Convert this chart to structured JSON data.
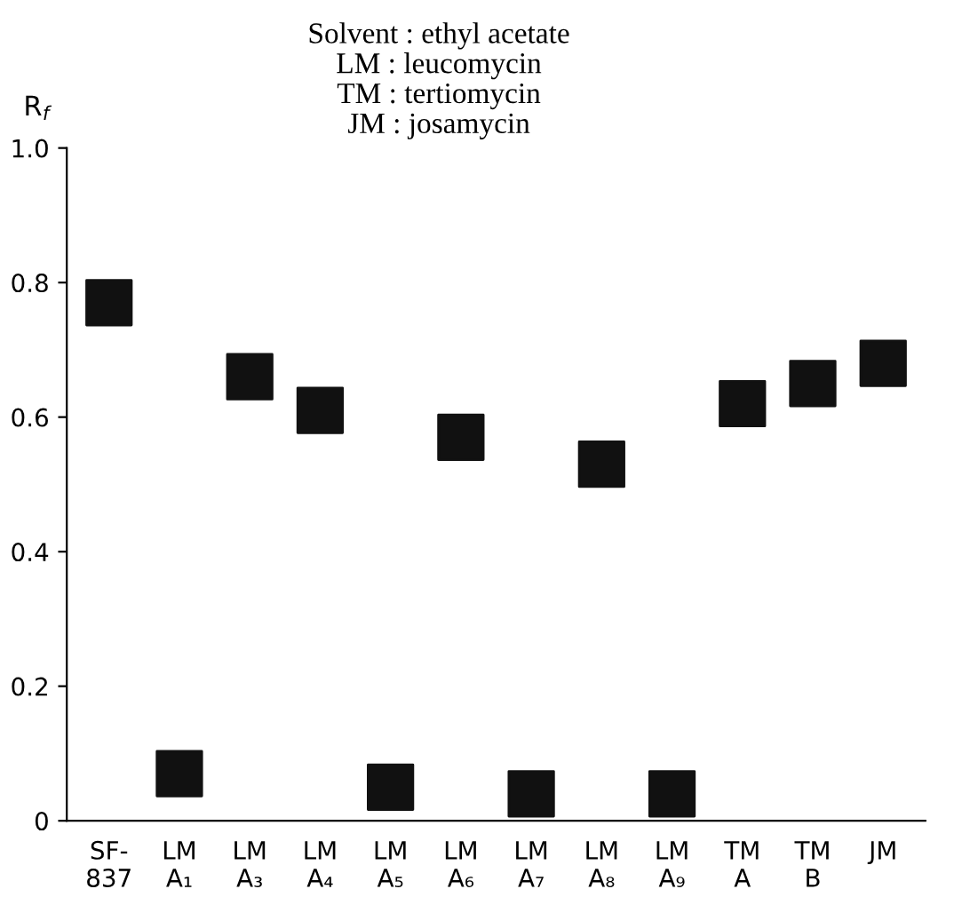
{
  "chart_data": {
    "type": "scatter",
    "title": "Solvent : ethyl acetate\nLM : leucomycin\nTM : tertiomycin\nJM : josamycin",
    "ylabel": "R$_{f}$",
    "categories": [
      "SF-\n837",
      "LM\nA₁",
      "LM\nA₃",
      "LM\nA₄",
      "LM\nA₅",
      "LM\nA₆",
      "LM\nA₇",
      "LM\nA₈",
      "LM\nA₉",
      "TM\nA",
      "TM\nB",
      "JM"
    ],
    "series": [
      {
        "color": "#111111",
        "values": [
          0.77,
          0.07,
          0.66,
          0.61,
          0.05,
          0.57,
          0.04,
          0.53,
          0.04,
          0.62,
          0.65,
          0.68
        ]
      }
    ],
    "ylim": [
      0,
      1.0
    ],
    "yticks": [
      0,
      0.2,
      0.4,
      0.6,
      0.8,
      {
        "value": 1.0,
        "label": "1.0"
      }
    ],
    "marker": "square",
    "grid": false
  }
}
